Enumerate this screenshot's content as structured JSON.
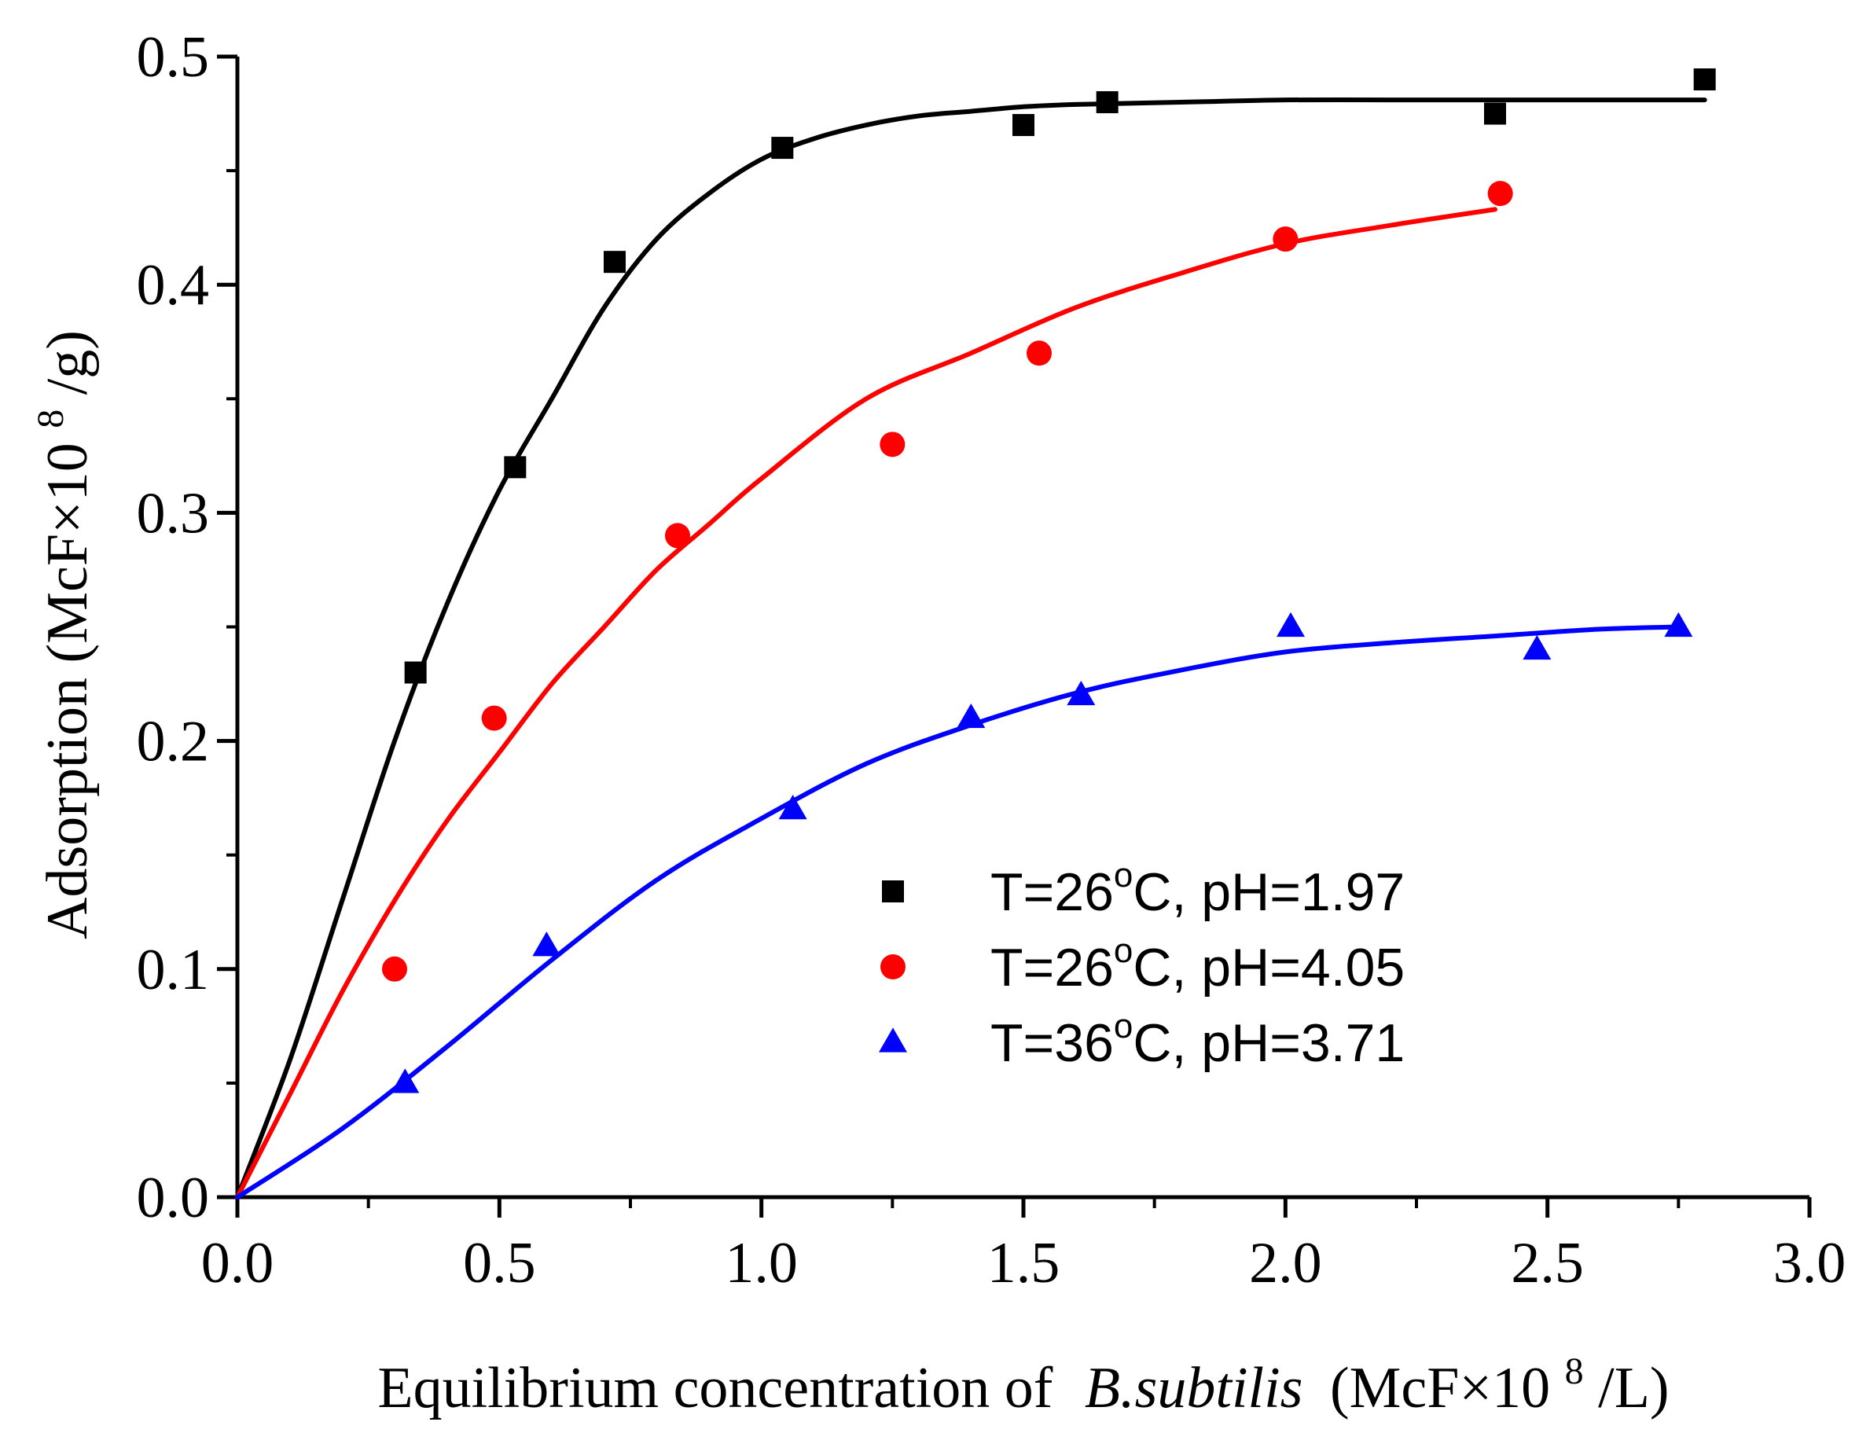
{
  "chart_data": {
    "type": "scatter",
    "title": "",
    "xlabel": {
      "prefix": "Equilibrium concentration of",
      "italic": "B.subtilis",
      "unit_open": "(McF×10",
      "unit_sup": "8",
      "unit_close": "/L)"
    },
    "ylabel": {
      "text": "Adsorption (McF×10",
      "sup": "8",
      "close": "/g)"
    },
    "xlim": [
      0,
      3.0
    ],
    "ylim": [
      0,
      0.5
    ],
    "xticks": [
      0.0,
      0.5,
      1.0,
      1.5,
      2.0,
      2.5,
      3.0
    ],
    "xtick_labels": [
      "0.0",
      "0.5",
      "1.0",
      "1.5",
      "2.0",
      "2.5",
      "3.0"
    ],
    "yticks": [
      0.0,
      0.1,
      0.2,
      0.3,
      0.4,
      0.5
    ],
    "ytick_labels": [
      "0.0",
      "0.1",
      "0.2",
      "0.3",
      "0.4",
      "0.5"
    ],
    "grid": false,
    "legend_position": "lower-right",
    "series": [
      {
        "name": "T=26oC, pH=1.97",
        "legend": {
          "pre": "T=26",
          "sup": "o",
          "post": "C, pH=1.97"
        },
        "color": "#000000",
        "marker": "square",
        "x": [
          0.34,
          0.53,
          0.72,
          1.04,
          1.5,
          1.66,
          2.4,
          2.8
        ],
        "y": [
          0.23,
          0.32,
          0.41,
          0.46,
          0.47,
          0.48,
          0.475,
          0.49
        ],
        "fit": {
          "x": [
            0.0,
            0.1,
            0.2,
            0.3,
            0.4,
            0.5,
            0.6,
            0.7,
            0.8,
            0.9,
            1.0,
            1.1,
            1.2,
            1.3,
            1.4,
            1.5,
            1.6,
            1.8,
            2.0,
            2.2,
            2.4,
            2.6,
            2.8
          ],
          "y": [
            0.0,
            0.06,
            0.13,
            0.2,
            0.26,
            0.31,
            0.35,
            0.39,
            0.42,
            0.44,
            0.455,
            0.464,
            0.47,
            0.474,
            0.476,
            0.478,
            0.479,
            0.48,
            0.481,
            0.481,
            0.481,
            0.481,
            0.481
          ]
        }
      },
      {
        "name": "T=26oC, pH=4.05",
        "legend": {
          "pre": "T=26",
          "sup": "o",
          "post": "C, pH=4.05"
        },
        "color": "#ff0000",
        "marker": "circle",
        "x": [
          0.3,
          0.49,
          0.84,
          1.25,
          1.53,
          2.0,
          2.41
        ],
        "y": [
          0.1,
          0.21,
          0.29,
          0.33,
          0.37,
          0.42,
          0.44
        ],
        "fit": {
          "x": [
            0.0,
            0.1,
            0.2,
            0.3,
            0.4,
            0.5,
            0.6,
            0.7,
            0.8,
            0.9,
            1.0,
            1.2,
            1.4,
            1.6,
            1.8,
            2.0,
            2.2,
            2.4
          ],
          "y": [
            0.0,
            0.045,
            0.09,
            0.13,
            0.165,
            0.195,
            0.225,
            0.25,
            0.275,
            0.295,
            0.315,
            0.35,
            0.37,
            0.39,
            0.405,
            0.418,
            0.426,
            0.433
          ]
        }
      },
      {
        "name": "T=36oC, pH=3.71",
        "legend": {
          "pre": "T=36",
          "sup": "o",
          "post": "C, pH=3.71"
        },
        "color": "#0000ff",
        "marker": "triangle",
        "x": [
          0.32,
          0.59,
          1.06,
          1.4,
          1.61,
          2.01,
          2.48,
          2.75
        ],
        "y": [
          0.05,
          0.11,
          0.17,
          0.21,
          0.22,
          0.25,
          0.24,
          0.25
        ],
        "fit": {
          "x": [
            0.0,
            0.2,
            0.4,
            0.6,
            0.8,
            1.0,
            1.2,
            1.4,
            1.6,
            1.8,
            2.0,
            2.2,
            2.4,
            2.6,
            2.75
          ],
          "y": [
            0.0,
            0.03,
            0.066,
            0.104,
            0.139,
            0.166,
            0.19,
            0.207,
            0.221,
            0.231,
            0.239,
            0.243,
            0.246,
            0.249,
            0.25
          ]
        }
      }
    ]
  }
}
